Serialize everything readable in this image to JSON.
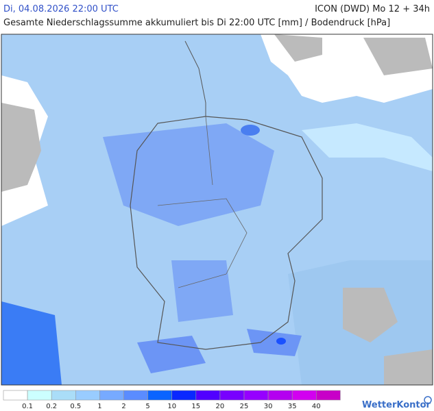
{
  "header": {
    "datetime": "Di, 04.08.2026 22:00 UTC",
    "model": "ICON (DWD) Mo 12 + 34h",
    "subtitle": "Gesamte Niederschlagssumme akkumuliert bis Di 22:00 UTC [mm] / Bodendruck [hPa]"
  },
  "legend": {
    "colors": [
      "#ffffff",
      "#ccffff",
      "#aaddf8",
      "#99ccff",
      "#77aaff",
      "#5a8cff",
      "#0a64ff",
      "#0a28ff",
      "#5000ff",
      "#7800ff",
      "#9600ff",
      "#b400f0",
      "#d200f0",
      "#c800c8"
    ],
    "labels": [
      "0.1",
      "0.2",
      "0.5",
      "1",
      "2",
      "5",
      "10",
      "15",
      "20",
      "25",
      "30",
      "35",
      "40"
    ]
  },
  "brand": "WetterKontor"
}
